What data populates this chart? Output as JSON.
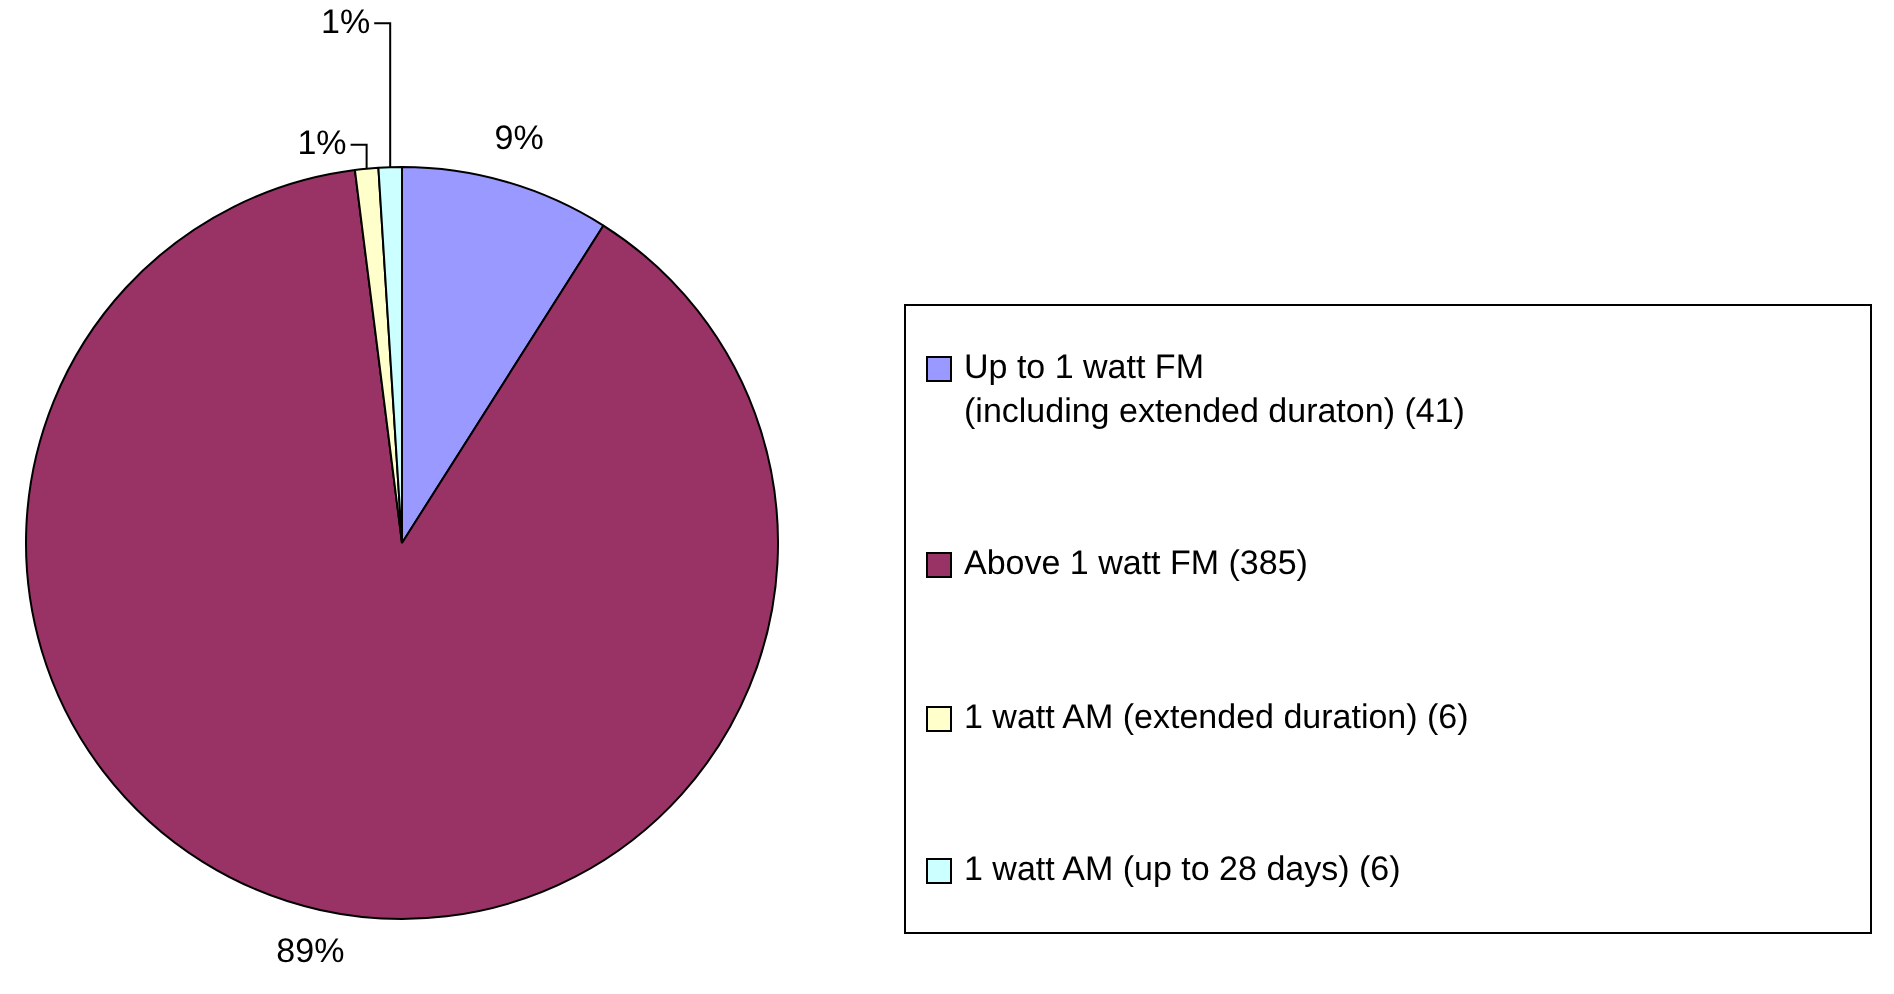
{
  "chart_data": {
    "type": "pie",
    "categories": [
      "Up to 1 watt FM\n(including extended duraton) (41)",
      "Above 1 watt FM (385)",
      "1 watt AM (extended duration) (6)",
      "1 watt AM (up to 28 days) (6)"
    ],
    "values": [
      9,
      89,
      1,
      1
    ],
    "colors": [
      "#9999ff",
      "#993366",
      "#ffffcc",
      "#ccffff"
    ],
    "value_labels": [
      "9%",
      "89%",
      "1%",
      "1%"
    ],
    "legend": "right"
  }
}
